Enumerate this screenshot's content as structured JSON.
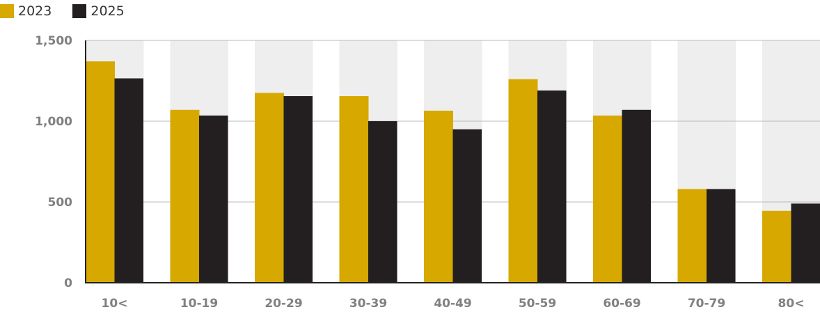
{
  "colors": {
    "series_2023": "#d6a800",
    "series_2025": "#231f20",
    "column_bg": "#eeeeee",
    "gridline": "#bbbbbb",
    "axis": "#222222"
  },
  "legend": {
    "items": [
      {
        "label": "2023"
      },
      {
        "label": "2025"
      }
    ]
  },
  "chart_data": {
    "type": "bar",
    "categories": [
      "10<",
      "10-19",
      "20-29",
      "30-39",
      "40-49",
      "50-59",
      "60-69",
      "70-79",
      "80<"
    ],
    "series": [
      {
        "name": "2023",
        "values": [
          1370,
          1070,
          1175,
          1155,
          1065,
          1260,
          1035,
          580,
          445
        ]
      },
      {
        "name": "2025",
        "values": [
          1265,
          1035,
          1155,
          1000,
          950,
          1190,
          1070,
          580,
          490
        ]
      }
    ],
    "ylim": [
      0,
      1500
    ],
    "yticks": [
      {
        "value": 0,
        "label": "0"
      },
      {
        "value": 500,
        "label": "500"
      },
      {
        "value": 1000,
        "label": "1,000"
      },
      {
        "value": 1500,
        "label": "1,500"
      }
    ],
    "grid": true,
    "legend_position": "top-left"
  }
}
